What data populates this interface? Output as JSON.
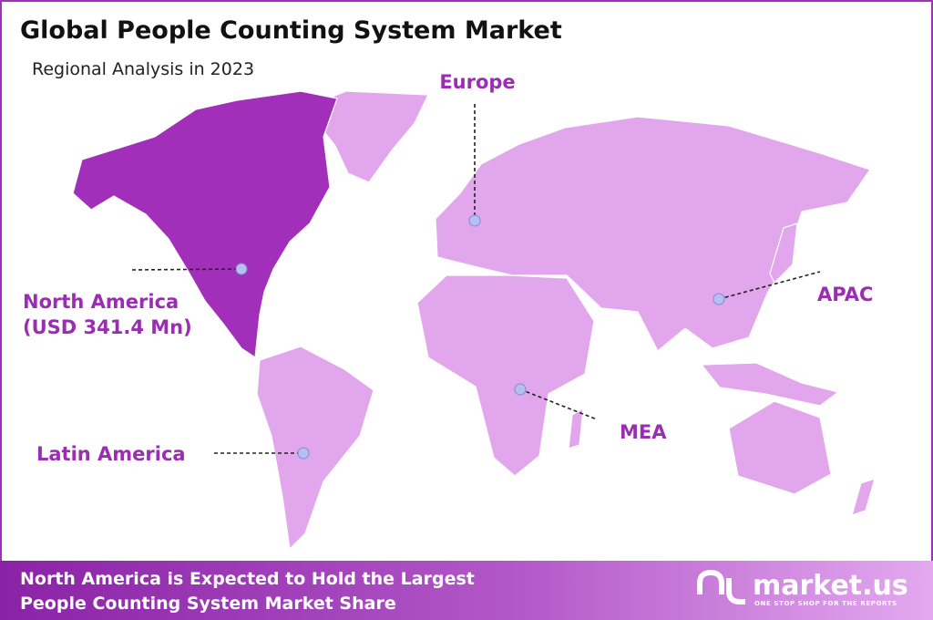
{
  "header": {
    "title": "Global People Counting System Market",
    "subtitle": "Regional Analysis in 2023"
  },
  "regions": [
    {
      "name": "Europe"
    },
    {
      "name": "North America",
      "value": "(USD 341.4 Mn)"
    },
    {
      "name": "APAC"
    },
    {
      "name": "MEA"
    },
    {
      "name": "Latin America"
    }
  ],
  "footer": {
    "lines": [
      "North America is Expected to Hold the Largest",
      "People Counting System Market Share"
    ],
    "logo": "market.us",
    "tagline": "ONE STOP SHOP FOR THE REPORTS"
  }
}
